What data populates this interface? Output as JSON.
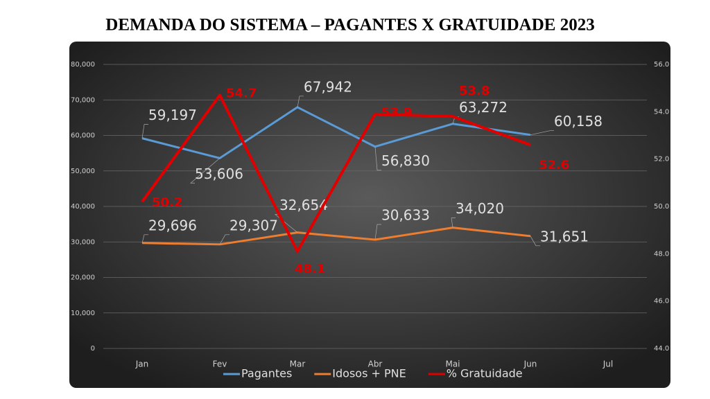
{
  "chart_data": {
    "type": "line",
    "title": "DEMANDA DO SISTEMA – PAGANTES X GRATUIDADE 2023",
    "categories": [
      "Jan",
      "Fev",
      "Mar",
      "Abr",
      "Mai",
      "Jun",
      "Jul"
    ],
    "series": [
      {
        "name": "Pagantes",
        "color": "#5b9bd5",
        "values": [
          59197,
          53606,
          67942,
          56830,
          63272,
          60158,
          null
        ],
        "value_labels": [
          "59,197",
          "53,606",
          "67,942",
          "56,830",
          "63,272",
          "60,158",
          null
        ]
      },
      {
        "name": "Idosos + PNE",
        "color": "#ed7d31",
        "values": [
          29696,
          29307,
          32654,
          30633,
          34020,
          31651,
          null
        ],
        "value_labels": [
          "29,696",
          "29,307",
          "32,654",
          "30,633",
          "34,020",
          "31,651",
          null
        ]
      },
      {
        "name": "% Gratuidade",
        "color": "#e00000",
        "axis": "y2",
        "values": [
          50.2,
          54.7,
          48.1,
          53.9,
          53.8,
          52.6,
          null
        ]
      }
    ],
    "ylim": [
      0,
      80000
    ],
    "yticks": [
      0,
      {
        "value": 10000,
        "label": "10,000"
      },
      {
        "value": 20000,
        "label": "20,000"
      },
      {
        "value": 30000,
        "label": "30,000"
      },
      {
        "value": 40000,
        "label": "40,000"
      },
      {
        "value": 50000,
        "label": "50,000"
      },
      {
        "value": 60000,
        "label": "60,000"
      },
      {
        "value": 70000,
        "label": "70,000"
      },
      {
        "value": 80000,
        "label": "80,000"
      }
    ],
    "y2lim": [
      44,
      56
    ],
    "y2ticks": [
      {
        "value": 44,
        "label": "44.0"
      },
      {
        "value": 46,
        "label": "46.0"
      },
      {
        "value": 48,
        "label": "48.0"
      },
      {
        "value": 50,
        "label": "50.0"
      },
      {
        "value": 52,
        "label": "52.0"
      },
      {
        "value": 54,
        "label": "54.0"
      },
      {
        "value": 56,
        "label": "56.0"
      }
    ],
    "grid": true,
    "legend": "bottom"
  }
}
